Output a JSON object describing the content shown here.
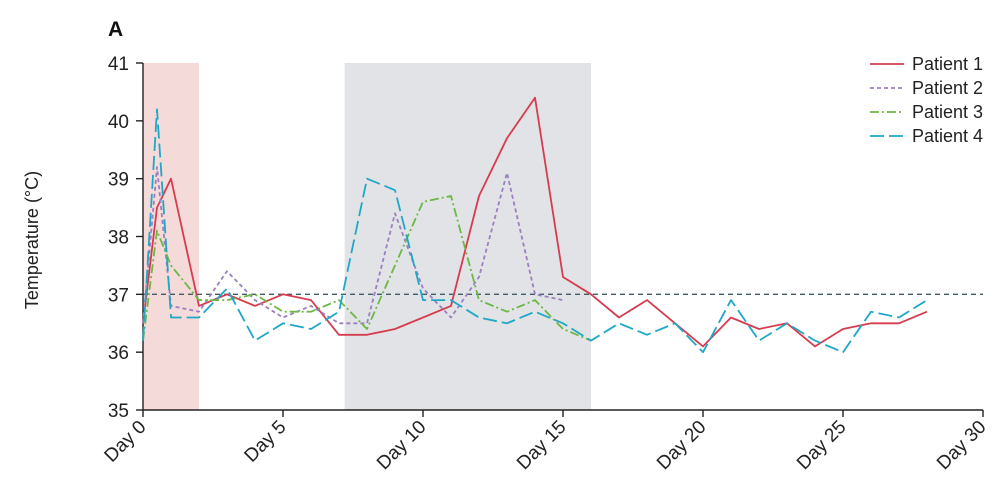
{
  "panel_label": "A",
  "chart_data": {
    "type": "line",
    "xlabel": "",
    "ylabel": "Temperature  (°C)",
    "xlim": [
      0,
      30
    ],
    "ylim": [
      35,
      41
    ],
    "x_ticks": [
      {
        "value": 0,
        "label": "Day 0"
      },
      {
        "value": 5,
        "label": "Day 5"
      },
      {
        "value": 10,
        "label": "Day 10"
      },
      {
        "value": 15,
        "label": "Day 15"
      },
      {
        "value": 20,
        "label": "Day 20"
      },
      {
        "value": 25,
        "label": "Day 25"
      },
      {
        "value": 30,
        "label": "Day 30"
      }
    ],
    "y_ticks": [
      {
        "value": 35,
        "label": "35"
      },
      {
        "value": 36,
        "label": "36"
      },
      {
        "value": 37,
        "label": "37"
      },
      {
        "value": 38,
        "label": "38"
      },
      {
        "value": 39,
        "label": "39"
      },
      {
        "value": 40,
        "label": "40"
      },
      {
        "value": 41,
        "label": "41"
      }
    ],
    "shaded_regions": [
      {
        "x0": 0,
        "x1": 2,
        "color": "#f4dad9"
      },
      {
        "x0": 7.2,
        "x1": 16,
        "color": "#e2e3e6"
      }
    ],
    "reference_line": {
      "y": 37,
      "color": "#3d5c66",
      "dash": "5,4"
    },
    "legend_position": "top-right",
    "grid": false,
    "series": [
      {
        "name": "Patient 1",
        "color": "#d63c4f",
        "dash": "",
        "x": [
          0,
          0.5,
          1,
          2,
          3,
          4,
          5,
          6,
          7,
          8,
          9,
          10,
          11,
          12,
          13,
          14,
          15,
          16,
          17,
          18,
          19,
          20,
          21,
          22,
          23,
          24,
          25,
          26,
          27,
          28
        ],
        "y": [
          36.5,
          38.5,
          39.0,
          36.8,
          37.0,
          36.8,
          37.0,
          36.9,
          36.3,
          36.3,
          36.4,
          36.6,
          36.8,
          38.7,
          39.7,
          40.4,
          37.3,
          37.0,
          36.6,
          36.9,
          36.5,
          36.1,
          36.6,
          36.4,
          36.5,
          36.1,
          36.4,
          36.5,
          36.5,
          36.7
        ]
      },
      {
        "name": "Patient 2",
        "color": "#9b7fc0",
        "dash": "4,3",
        "x": [
          0,
          0.5,
          1,
          2,
          3,
          4,
          5,
          6,
          7,
          8,
          9,
          10,
          11,
          12,
          13,
          14,
          15
        ],
        "y": [
          36.5,
          39.2,
          36.8,
          36.7,
          37.4,
          36.9,
          36.6,
          36.8,
          36.5,
          36.5,
          38.4,
          37.1,
          36.6,
          37.3,
          39.1,
          37.0,
          36.9
        ]
      },
      {
        "name": "Patient 3",
        "color": "#6cb845",
        "dash": "9,3,2,3",
        "x": [
          0,
          0.5,
          1,
          2,
          3,
          4,
          5,
          6,
          7,
          8,
          9,
          10,
          11,
          12,
          13,
          14,
          15,
          16
        ],
        "y": [
          36.2,
          38.1,
          37.5,
          36.9,
          36.9,
          37.0,
          36.7,
          36.7,
          36.9,
          36.4,
          37.5,
          38.6,
          38.7,
          36.9,
          36.7,
          36.9,
          36.4,
          36.2
        ]
      },
      {
        "name": "Patient 4",
        "color": "#1fa7c8",
        "dash": "14,5",
        "x": [
          0,
          0.5,
          1,
          2,
          3,
          4,
          5,
          6,
          7,
          8,
          9,
          10,
          11,
          12,
          13,
          14,
          15,
          16,
          17,
          18,
          19,
          20,
          21,
          22,
          23,
          24,
          25,
          26,
          27,
          28
        ],
        "y": [
          36.2,
          40.2,
          36.6,
          36.6,
          37.1,
          36.2,
          36.5,
          36.4,
          36.7,
          39.0,
          38.8,
          36.9,
          36.9,
          36.6,
          36.5,
          36.7,
          36.5,
          36.2,
          36.5,
          36.3,
          36.5,
          36.0,
          36.9,
          36.2,
          36.5,
          36.2,
          36.0,
          36.7,
          36.6,
          36.9
        ]
      }
    ]
  }
}
